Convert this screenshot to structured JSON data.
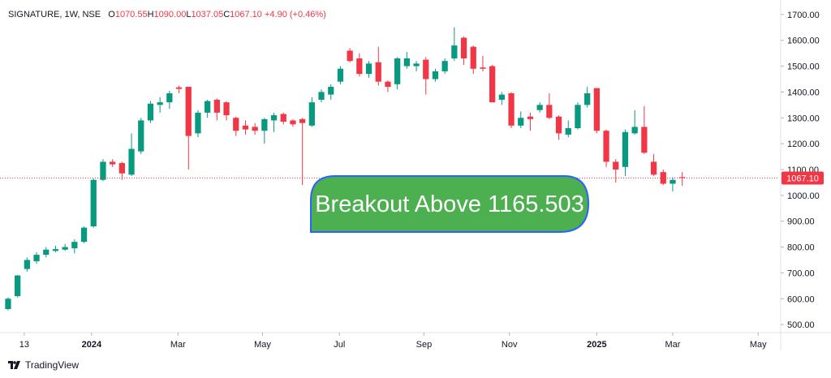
{
  "header": {
    "symbol": "SIGNATURE, 1W, NSE",
    "ohlc": [
      {
        "key": "O",
        "value": "1070.55"
      },
      {
        "key": "H",
        "value": "1090.00"
      },
      {
        "key": "L",
        "value": "1037.05"
      },
      {
        "key": "C",
        "value": "1067.10"
      }
    ],
    "change": "+4.90 (+0.46%)"
  },
  "footer": {
    "brand": "TradingView"
  },
  "chart_data": {
    "type": "candlestick",
    "x": [
      0,
      1,
      2,
      3,
      4,
      5,
      6,
      7,
      8,
      9,
      10,
      11,
      12,
      13,
      14,
      15,
      16,
      17,
      18,
      19,
      20,
      21,
      22,
      23,
      24,
      25,
      26,
      27,
      28,
      29,
      30,
      31,
      32,
      33,
      34,
      35,
      36,
      37,
      38,
      39,
      40,
      41,
      42,
      43,
      44,
      45,
      46,
      47,
      48,
      49,
      50,
      51,
      52,
      53,
      54,
      55,
      56,
      57,
      58,
      59,
      60,
      61,
      62,
      63,
      64,
      65,
      66,
      67,
      68,
      69,
      70,
      71
    ],
    "open": [
      560,
      610,
      715,
      745,
      770,
      785,
      790,
      795,
      820,
      880,
      1060,
      1130,
      1125,
      1080,
      1170,
      1290,
      1350,
      1360,
      1418,
      1420,
      1240,
      1320,
      1370,
      1360,
      1300,
      1270,
      1265,
      1250,
      1290,
      1315,
      1290,
      1295,
      1270,
      1370,
      1390,
      1440,
      1560,
      1530,
      1470,
      1515,
      1440,
      1430,
      1500,
      1500,
      1525,
      1450,
      1480,
      1530,
      1610,
      1575,
      1495,
      1500,
      1370,
      1395,
      1270,
      1305,
      1330,
      1350,
      1305,
      1235,
      1260,
      1350,
      1415,
      1250,
      1130,
      1110,
      1240,
      1265,
      1130,
      1090,
      1045,
      1070.55
    ],
    "high": [
      605,
      692,
      760,
      780,
      800,
      805,
      812,
      830,
      880,
      1065,
      1140,
      1140,
      1130,
      1240,
      1300,
      1365,
      1380,
      1405,
      1425,
      1420,
      1330,
      1370,
      1375,
      1365,
      1305,
      1290,
      1280,
      1300,
      1320,
      1320,
      1295,
      1300,
      1380,
      1410,
      1430,
      1500,
      1570,
      1550,
      1520,
      1575,
      1445,
      1535,
      1555,
      1520,
      1535,
      1490,
      1530,
      1650,
      1615,
      1580,
      1540,
      1505,
      1400,
      1400,
      1325,
      1320,
      1360,
      1395,
      1310,
      1290,
      1360,
      1420,
      1415,
      1255,
      1140,
      1255,
      1330,
      1345,
      1160,
      1100,
      1070,
      1090
    ],
    "low": [
      555,
      605,
      705,
      735,
      760,
      780,
      785,
      775,
      815,
      875,
      1055,
      1110,
      1060,
      1075,
      1160,
      1280,
      1320,
      1335,
      1395,
      1100,
      1225,
      1300,
      1290,
      1290,
      1230,
      1235,
      1235,
      1200,
      1245,
      1275,
      1265,
      1040,
      1265,
      1360,
      1370,
      1430,
      1515,
      1460,
      1455,
      1425,
      1400,
      1410,
      1490,
      1480,
      1390,
      1440,
      1470,
      1520,
      1505,
      1470,
      1480,
      1360,
      1350,
      1260,
      1260,
      1250,
      1320,
      1295,
      1215,
      1225,
      1255,
      1340,
      1240,
      1110,
      1050,
      1075,
      1235,
      1160,
      1075,
      1040,
      1015,
      1037.05
    ],
    "close": [
      600,
      690,
      750,
      770,
      790,
      792,
      800,
      820,
      875,
      1060,
      1130,
      1120,
      1085,
      1180,
      1290,
      1355,
      1360,
      1395,
      1412,
      1230,
      1320,
      1365,
      1320,
      1310,
      1250,
      1255,
      1250,
      1295,
      1310,
      1285,
      1275,
      1280,
      1360,
      1400,
      1420,
      1490,
      1520,
      1470,
      1510,
      1440,
      1420,
      1530,
      1530,
      1510,
      1450,
      1480,
      1520,
      1580,
      1530,
      1490,
      1490,
      1360,
      1390,
      1270,
      1300,
      1295,
      1350,
      1300,
      1240,
      1260,
      1350,
      1395,
      1250,
      1130,
      1100,
      1245,
      1265,
      1165,
      1080,
      1045,
      1060,
      1067.1
    ],
    "up_color": "#089981",
    "down_color": "#f23645",
    "xlim": [
      -0.85,
      81.2
    ],
    "xticks": [
      {
        "value": 1.7,
        "label": "13"
      },
      {
        "value": 8.8,
        "label": "2024"
      },
      {
        "value": 17.9,
        "label": "Mar"
      },
      {
        "value": 26.8,
        "label": "May"
      },
      {
        "value": 34.9,
        "label": "Jul"
      },
      {
        "value": 43.8,
        "label": "Sep"
      },
      {
        "value": 52.8,
        "label": "Nov"
      },
      {
        "value": 62.0,
        "label": "2025"
      },
      {
        "value": 70.0,
        "label": "Mar"
      },
      {
        "value": 79.0,
        "label": "May"
      }
    ],
    "ylim": [
      469,
      1756
    ],
    "yticks": [
      {
        "value": 500,
        "label": "500.00"
      },
      {
        "value": 600,
        "label": "600.00"
      },
      {
        "value": 700,
        "label": "700.00"
      },
      {
        "value": 800,
        "label": "800.00"
      },
      {
        "value": 900,
        "label": "900.00"
      },
      {
        "value": 1000,
        "label": "1000.00"
      },
      {
        "value": 1100,
        "label": "1100.00"
      },
      {
        "value": 1200,
        "label": "1200.00"
      },
      {
        "value": 1300,
        "label": "1300.00"
      },
      {
        "value": 1400,
        "label": "1400.00"
      },
      {
        "value": 1500,
        "label": "1500.00"
      },
      {
        "value": 1600,
        "label": "1600.00"
      },
      {
        "value": 1700,
        "label": "1700.00"
      }
    ],
    "grid": false,
    "price_line": {
      "value": 1067.1,
      "label": "1067.10",
      "color": "#f23645"
    },
    "annotation": {
      "text": "Breakout Above 1165.503",
      "color": "#4caf50",
      "border": "#2962ff"
    }
  }
}
